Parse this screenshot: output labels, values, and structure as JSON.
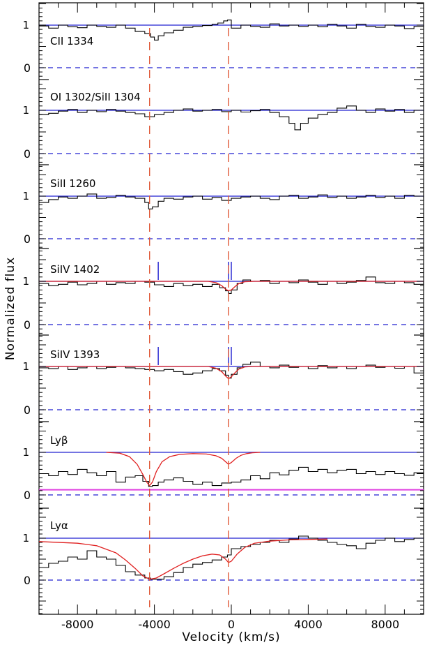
{
  "chart_data": {
    "type": "line",
    "xlabel": "Velocity (km/s)",
    "ylabel": "Normalized flux",
    "xlim": [
      -10000,
      10000
    ],
    "x_ticks": [
      -8000,
      -4000,
      0,
      4000,
      8000
    ],
    "x_tick_labels": [
      "-8000",
      "-4000",
      "0",
      "4000",
      "8000"
    ],
    "marker_velocities": [
      -4250,
      -150
    ],
    "panel_y_tick_labels": [
      "0",
      "1"
    ],
    "colors": {
      "spectrum": "#000000",
      "continuum": "#2020d0",
      "zero_line": "#2020d0",
      "fit": "#e02020",
      "marker": "#e05a3a",
      "sky_line": "#e040e0",
      "component_tick": "#2020d0"
    },
    "panels": [
      {
        "label": "CII 1334",
        "ylim": [
          -0.15,
          1.3
        ],
        "spectrum": {
          "x": [
            -10000,
            -9500,
            -9000,
            -8500,
            -8000,
            -7500,
            -7000,
            -6500,
            -6000,
            -5500,
            -5000,
            -4500,
            -4200,
            -4000,
            -3800,
            -3500,
            -3000,
            -2500,
            -2000,
            -1500,
            -1000,
            -700,
            -400,
            -200,
            0,
            500,
            1000,
            1500,
            2000,
            2500,
            3000,
            3500,
            4000,
            4500,
            5000,
            5500,
            6000,
            6500,
            7000,
            7500,
            8000,
            8500,
            9000,
            9500,
            10000
          ],
          "y": [
            0.98,
            0.93,
            1.0,
            0.96,
            0.94,
            1.0,
            0.97,
            0.95,
            1.0,
            0.93,
            0.85,
            0.8,
            0.72,
            0.65,
            0.75,
            0.82,
            0.88,
            0.95,
            0.97,
            0.99,
            1.02,
            1.05,
            1.1,
            1.12,
            0.93,
            1.0,
            0.97,
            0.95,
            1.03,
            0.98,
            1.0,
            0.97,
            1.0,
            0.96,
            1.02,
            0.98,
            0.93,
            1.02,
            0.97,
            0.95,
            1.0,
            0.98,
            0.92,
            0.97,
            1.0
          ]
        },
        "ticks": []
      },
      {
        "label": "OI 1302/SiII 1304",
        "ylim": [
          -0.15,
          1.3
        ],
        "spectrum": {
          "x": [
            -10000,
            -9500,
            -9000,
            -8500,
            -8000,
            -7500,
            -7000,
            -6500,
            -6000,
            -5500,
            -5000,
            -4500,
            -4000,
            -3500,
            -3000,
            -2500,
            -2000,
            -1500,
            -1000,
            -500,
            0,
            500,
            1000,
            1500,
            2000,
            2500,
            3000,
            3300,
            3600,
            4000,
            4500,
            5000,
            5500,
            6000,
            6500,
            7000,
            7500,
            8000,
            8500,
            9000,
            9500,
            10000
          ],
          "y": [
            0.9,
            0.93,
            0.98,
            1.02,
            0.95,
            1.0,
            0.97,
            1.02,
            0.98,
            0.95,
            0.92,
            0.85,
            0.9,
            0.95,
            1.0,
            1.03,
            0.98,
            1.0,
            1.02,
            0.97,
            1.0,
            0.96,
            0.99,
            1.02,
            0.95,
            0.85,
            0.7,
            0.55,
            0.7,
            0.82,
            0.9,
            0.95,
            1.05,
            1.1,
            1.0,
            0.95,
            1.03,
            0.98,
            1.02,
            0.95,
            1.0,
            0.98
          ]
        },
        "ticks": []
      },
      {
        "label": "SiII 1260",
        "ylim": [
          -0.15,
          1.3
        ],
        "spectrum": {
          "x": [
            -10000,
            -9500,
            -9000,
            -8500,
            -8000,
            -7500,
            -7000,
            -6500,
            -6000,
            -5500,
            -5000,
            -4500,
            -4300,
            -4100,
            -3800,
            -3500,
            -3000,
            -2500,
            -2000,
            -1500,
            -1000,
            -500,
            0,
            500,
            1000,
            1500,
            2000,
            2500,
            3000,
            3500,
            4000,
            4500,
            5000,
            5500,
            6000,
            6500,
            7000,
            7500,
            8000,
            8500,
            9000,
            9500,
            10000
          ],
          "y": [
            0.85,
            0.92,
            0.98,
            0.95,
            1.0,
            1.05,
            0.95,
            0.97,
            1.02,
            0.98,
            0.95,
            0.85,
            0.7,
            0.75,
            0.88,
            0.95,
            0.93,
            0.98,
            1.0,
            0.93,
            0.97,
            0.9,
            0.95,
            0.98,
            1.0,
            0.95,
            0.92,
            1.0,
            1.02,
            0.95,
            0.98,
            1.03,
            0.97,
            1.0,
            0.95,
            0.98,
            1.02,
            0.97,
            1.0,
            0.95,
            1.02,
            1.0,
            0.97
          ]
        },
        "ticks": []
      },
      {
        "label": "SiIV 1402",
        "ylim": [
          -0.15,
          1.3
        ],
        "spectrum": {
          "x": [
            -10000,
            -9500,
            -9000,
            -8500,
            -8000,
            -7500,
            -7000,
            -6500,
            -6000,
            -5500,
            -5000,
            -4500,
            -4000,
            -3500,
            -3000,
            -2500,
            -2000,
            -1500,
            -1000,
            -600,
            -300,
            -150,
            0,
            300,
            600,
            1000,
            1500,
            2000,
            2500,
            3000,
            3500,
            4000,
            4500,
            5000,
            5500,
            6000,
            6500,
            7000,
            7500,
            8000,
            8500,
            9000,
            9500,
            10000
          ],
          "y": [
            0.95,
            0.9,
            0.93,
            0.98,
            0.92,
            0.95,
            1.0,
            0.93,
            0.97,
            0.95,
            1.0,
            0.98,
            0.92,
            0.88,
            0.95,
            0.9,
            0.93,
            0.88,
            0.93,
            0.85,
            0.78,
            0.72,
            0.8,
            0.95,
            1.03,
            1.0,
            1.02,
            0.95,
            1.0,
            0.97,
            1.03,
            0.98,
            0.93,
            1.0,
            0.95,
            0.98,
            1.02,
            1.1,
            0.97,
            0.95,
            1.0,
            0.97,
            0.93,
            1.0
          ]
        },
        "fit": {
          "x": [
            -10000,
            -1200,
            -800,
            -500,
            -300,
            -150,
            0,
            200,
            400,
            700,
            1200,
            10000
          ],
          "y": [
            1.0,
            1.0,
            0.97,
            0.9,
            0.82,
            0.78,
            0.8,
            0.88,
            0.95,
            0.99,
            1.0,
            1.0
          ]
        },
        "ticks": [
          -3800,
          -150,
          0
        ]
      },
      {
        "label": "SiIV 1393",
        "ylim": [
          -0.15,
          1.3
        ],
        "spectrum": {
          "x": [
            -10000,
            -9500,
            -9000,
            -8500,
            -8000,
            -7500,
            -7000,
            -6500,
            -6000,
            -5500,
            -5000,
            -4500,
            -4000,
            -3500,
            -3000,
            -2500,
            -2000,
            -1500,
            -1000,
            -600,
            -300,
            -150,
            0,
            300,
            600,
            1000,
            1500,
            2000,
            2500,
            3000,
            3500,
            4000,
            4500,
            5000,
            5500,
            6000,
            6500,
            7000,
            7500,
            8000,
            8500,
            9000,
            9500,
            10000
          ],
          "y": [
            0.97,
            0.95,
            1.0,
            0.93,
            0.97,
            1.0,
            0.95,
            0.98,
            1.0,
            0.97,
            0.95,
            0.93,
            0.9,
            0.93,
            0.88,
            0.82,
            0.85,
            0.9,
            0.95,
            0.9,
            0.8,
            0.73,
            0.82,
            0.97,
            1.05,
            1.1,
            1.0,
            0.97,
            1.03,
            0.98,
            1.0,
            0.95,
            1.02,
            0.97,
            1.0,
            0.95,
            1.0,
            1.03,
            0.98,
            1.0,
            0.96,
            1.0,
            0.85,
            0.97
          ]
        },
        "fit": {
          "x": [
            -10000,
            -1200,
            -800,
            -500,
            -300,
            -150,
            0,
            200,
            400,
            700,
            1200,
            10000
          ],
          "y": [
            1.0,
            1.0,
            0.96,
            0.88,
            0.78,
            0.72,
            0.76,
            0.86,
            0.94,
            0.99,
            1.0,
            1.0
          ]
        },
        "ticks": [
          -3800,
          -150,
          0
        ]
      },
      {
        "label": "Lyβ",
        "ylim": [
          -0.15,
          1.3
        ],
        "spectrum": {
          "x": [
            -10000,
            -9500,
            -9000,
            -8500,
            -8000,
            -7500,
            -7000,
            -6500,
            -6000,
            -5500,
            -5000,
            -4600,
            -4300,
            -4100,
            -3800,
            -3500,
            -3000,
            -2500,
            -2000,
            -1500,
            -1000,
            -500,
            0,
            500,
            1000,
            1500,
            2000,
            2500,
            3000,
            3500,
            4000,
            4500,
            5000,
            5500,
            6000,
            6500,
            7000,
            7500,
            8000,
            8500,
            9000,
            9500,
            10000
          ],
          "y": [
            0.5,
            0.45,
            0.55,
            0.48,
            0.6,
            0.52,
            0.45,
            0.55,
            0.3,
            0.42,
            0.45,
            0.32,
            0.2,
            0.22,
            0.3,
            0.35,
            0.4,
            0.32,
            0.25,
            0.3,
            0.22,
            0.28,
            0.3,
            0.35,
            0.45,
            0.38,
            0.52,
            0.47,
            0.58,
            0.65,
            0.55,
            0.6,
            0.52,
            0.58,
            0.6,
            0.5,
            0.55,
            0.48,
            0.55,
            0.5,
            0.46,
            0.52,
            0.5
          ]
        },
        "fit": {
          "x": [
            -6500,
            -5800,
            -5300,
            -4900,
            -4600,
            -4400,
            -4250,
            -4100,
            -3900,
            -3600,
            -3200,
            -2700,
            -2000,
            -1300,
            -800,
            -500,
            -300,
            -150,
            0,
            250,
            500,
            800,
            1100,
            1500
          ],
          "y": [
            1.0,
            0.98,
            0.9,
            0.72,
            0.48,
            0.3,
            0.22,
            0.3,
            0.55,
            0.78,
            0.9,
            0.95,
            0.97,
            0.96,
            0.92,
            0.86,
            0.78,
            0.72,
            0.76,
            0.86,
            0.93,
            0.97,
            0.99,
            1.0
          ]
        },
        "sky_line": 0.12,
        "ticks": []
      },
      {
        "label": "Lyα",
        "ylim": [
          -0.15,
          1.3
        ],
        "spectrum": {
          "x": [
            -10000,
            -9500,
            -9000,
            -8500,
            -8000,
            -7500,
            -7000,
            -6500,
            -6000,
            -5500,
            -5000,
            -4500,
            -4200,
            -3900,
            -3500,
            -3000,
            -2500,
            -2000,
            -1500,
            -1000,
            -500,
            -200,
            0,
            500,
            1000,
            1500,
            2000,
            2500,
            3000,
            3500,
            4000,
            4500,
            5000,
            5500,
            6000,
            6500,
            7000,
            7500,
            8000,
            8500,
            9000,
            9500,
            10000
          ],
          "y": [
            0.3,
            0.4,
            0.45,
            0.55,
            0.5,
            0.7,
            0.55,
            0.5,
            0.35,
            0.2,
            0.12,
            0.05,
            0.02,
            0.02,
            0.08,
            0.18,
            0.3,
            0.38,
            0.42,
            0.48,
            0.55,
            0.6,
            0.75,
            0.8,
            0.85,
            0.9,
            0.95,
            0.9,
            0.98,
            1.05,
            1.0,
            0.95,
            0.9,
            0.85,
            0.82,
            0.75,
            0.88,
            0.95,
            1.0,
            0.92,
            0.97,
            1.0,
            1.02
          ]
        },
        "fit": {
          "x": [
            -10000,
            -8000,
            -7000,
            -6000,
            -5500,
            -5000,
            -4600,
            -4250,
            -3900,
            -3500,
            -3000,
            -2500,
            -2000,
            -1500,
            -1000,
            -600,
            -300,
            -150,
            0,
            300,
            700,
            1200,
            2000,
            3000,
            5000
          ],
          "y": [
            0.92,
            0.88,
            0.82,
            0.65,
            0.48,
            0.28,
            0.1,
            0.02,
            0.05,
            0.15,
            0.28,
            0.4,
            0.5,
            0.58,
            0.62,
            0.6,
            0.5,
            0.42,
            0.45,
            0.62,
            0.78,
            0.88,
            0.93,
            0.96,
            0.98
          ]
        },
        "ticks": []
      }
    ]
  }
}
